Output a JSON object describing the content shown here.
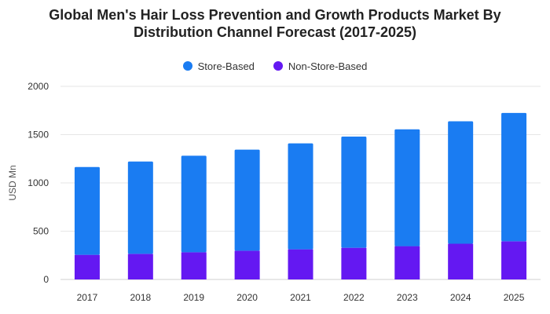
{
  "chart_data": {
    "type": "bar",
    "stacked": true,
    "title": "Global Men's Hair Loss Prevention and Growth Products Market By Distribution Channel Forecast (2017-2025)",
    "xlabel": "",
    "ylabel": "USD Mn",
    "categories": [
      "2017",
      "2018",
      "2019",
      "2020",
      "2021",
      "2022",
      "2023",
      "2024",
      "2025"
    ],
    "series": [
      {
        "name": "Non-Store-Based",
        "color": "#6418F2",
        "values": [
          255,
          265,
          282,
          298,
          312,
          328,
          345,
          370,
          395
        ]
      },
      {
        "name": "Store-Based",
        "color": "#1A7CF2",
        "values": [
          910,
          957,
          1000,
          1047,
          1098,
          1152,
          1210,
          1268,
          1330
        ]
      }
    ],
    "ylim": [
      0,
      2000
    ],
    "yticks": [
      "0",
      "500",
      "1000",
      "1500",
      "2000"
    ],
    "grid": true,
    "legend_position": "top-center"
  }
}
